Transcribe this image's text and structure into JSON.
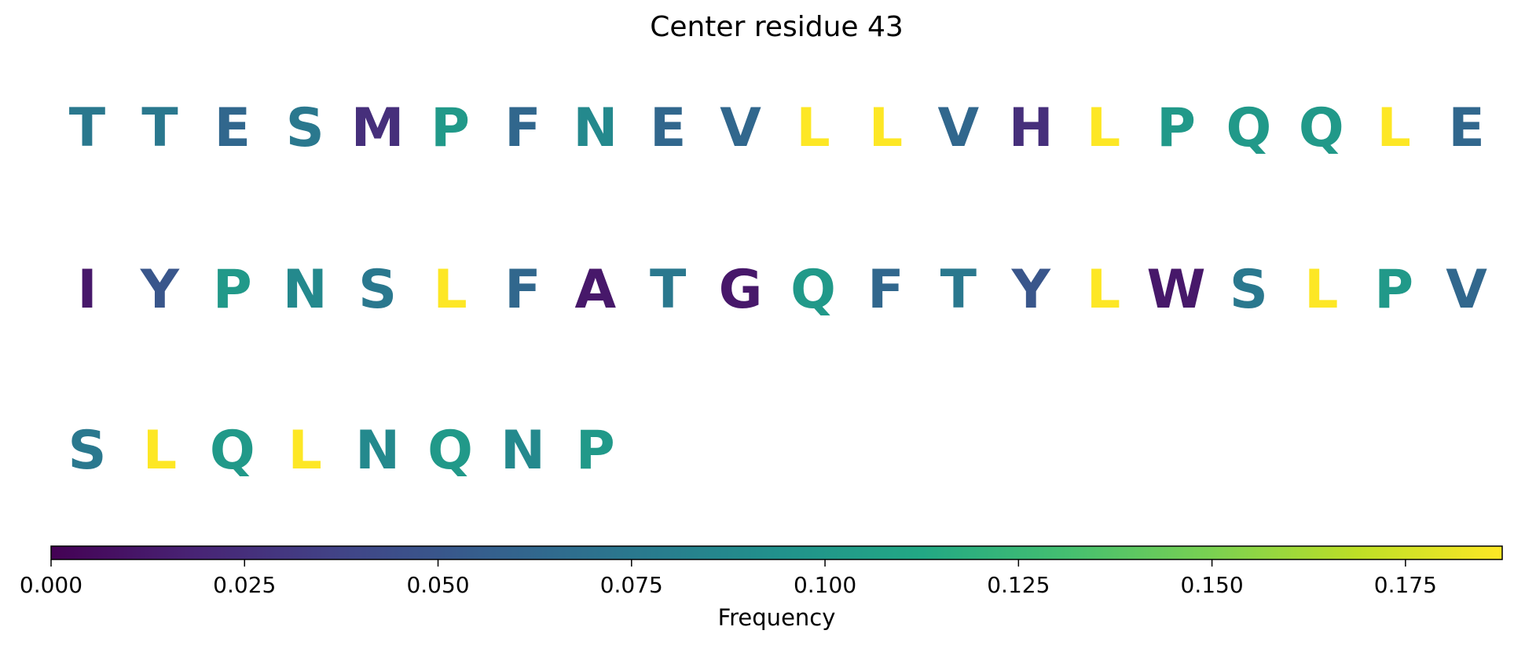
{
  "chart_data": {
    "type": "heatmap",
    "title": "Center residue 43",
    "colorbar": {
      "label": "Frequency",
      "range": [
        0,
        0.1875
      ],
      "ticks": [
        "0.000",
        "0.025",
        "0.050",
        "0.075",
        "0.100",
        "0.125",
        "0.150",
        "0.175"
      ],
      "colormap": "viridis"
    },
    "rows": [
      {
        "letters": [
          "T",
          "T",
          "E",
          "S",
          "M",
          "P",
          "F",
          "N",
          "E",
          "V",
          "L",
          "L",
          "V",
          "H",
          "L",
          "P",
          "Q",
          "Q",
          "L",
          "E"
        ],
        "values": [
          0.075,
          0.075,
          0.0625,
          0.075,
          0.025,
          0.1,
          0.0625,
          0.0875,
          0.0625,
          0.0625,
          0.1875,
          0.1875,
          0.0625,
          0.025,
          0.1875,
          0.1,
          0.1,
          0.1,
          0.1875,
          0.0625
        ]
      },
      {
        "letters": [
          "I",
          "Y",
          "P",
          "N",
          "S",
          "L",
          "F",
          "A",
          "T",
          "G",
          "Q",
          "F",
          "T",
          "Y",
          "L",
          "W",
          "S",
          "L",
          "P",
          "V"
        ],
        "values": [
          0.0125,
          0.05,
          0.1,
          0.0875,
          0.075,
          0.1875,
          0.0625,
          0.0125,
          0.075,
          0.0125,
          0.1,
          0.0625,
          0.075,
          0.05,
          0.1875,
          0.0125,
          0.075,
          0.1875,
          0.1,
          0.0625
        ]
      },
      {
        "letters": [
          "S",
          "L",
          "Q",
          "L",
          "N",
          "Q",
          "N",
          "P"
        ],
        "values": [
          0.075,
          0.1875,
          0.1,
          0.1875,
          0.0875,
          0.1,
          0.0875,
          0.1
        ]
      }
    ]
  }
}
